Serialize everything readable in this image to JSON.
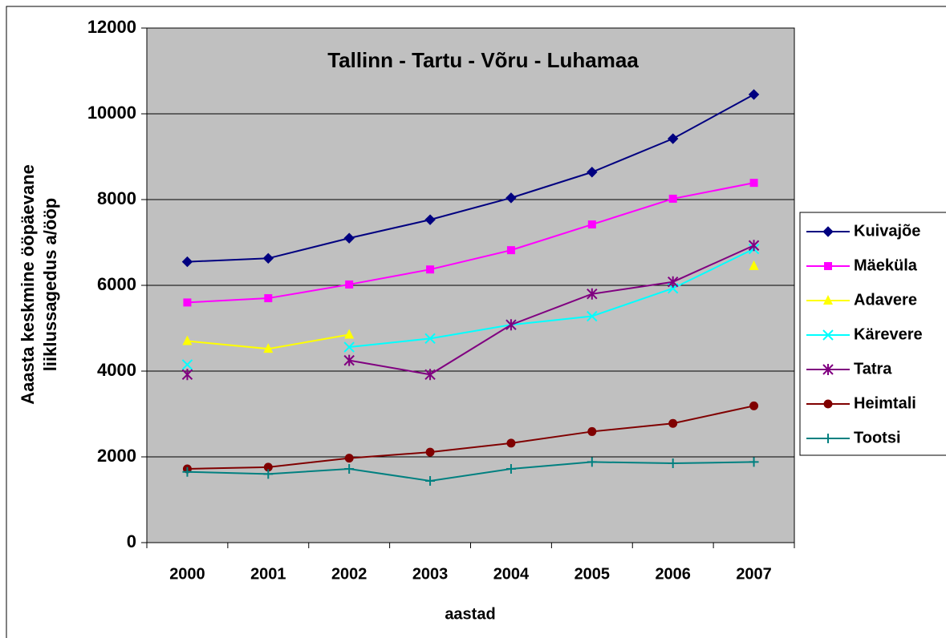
{
  "chart_data": {
    "type": "line",
    "title": "Tallinn - Tartu - Võru - Luhamaa",
    "xlabel": "aastad",
    "ylabel": [
      "Aaasta keskmine ööpäevane",
      "liiklussagedus a/ööp"
    ],
    "categories": [
      "2000",
      "2001",
      "2002",
      "2003",
      "2004",
      "2005",
      "2006",
      "2007"
    ],
    "ylim": [
      0,
      12000
    ],
    "yticks": [
      0,
      2000,
      4000,
      6000,
      8000,
      10000,
      12000
    ],
    "grid": true,
    "legend": "right",
    "series": [
      {
        "name": "Kuivajõe",
        "color": "#000080",
        "marker": "diamond",
        "values": [
          6550,
          6630,
          7100,
          7530,
          8040,
          8640,
          9420,
          10450
        ]
      },
      {
        "name": "Mäeküla",
        "color": "#ff00ff",
        "marker": "square",
        "values": [
          5600,
          5700,
          6020,
          6370,
          6820,
          7420,
          8020,
          8390
        ]
      },
      {
        "name": "Adavere",
        "color": "#ffff00",
        "marker": "triangle",
        "values": [
          4700,
          4520,
          4850,
          null,
          null,
          null,
          null,
          6450
        ]
      },
      {
        "name": "Kärevere",
        "color": "#00ffff",
        "marker": "x",
        "values": [
          4150,
          null,
          4560,
          4760,
          5080,
          5280,
          5930,
          6850
        ]
      },
      {
        "name": "Tatra",
        "color": "#800080",
        "marker": "asterisk",
        "values": [
          3920,
          null,
          4250,
          3920,
          5080,
          5800,
          6080,
          6930
        ]
      },
      {
        "name": "Heimtali",
        "color": "#800000",
        "marker": "circle",
        "values": [
          1720,
          1760,
          1970,
          2110,
          2320,
          2590,
          2780,
          3190
        ]
      },
      {
        "name": "Tootsi",
        "color": "#008080",
        "marker": "plus",
        "values": [
          1650,
          1600,
          1720,
          1440,
          1720,
          1880,
          1850,
          1880
        ]
      }
    ]
  }
}
